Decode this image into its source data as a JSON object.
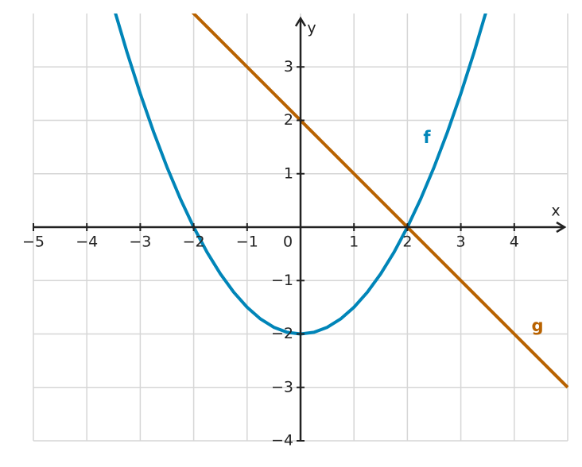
{
  "chart_data": {
    "type": "line",
    "xlabel": "x",
    "ylabel": "y",
    "x": [
      -5,
      -4.75,
      -4.5,
      -4.25,
      -4,
      -3.75,
      -3.5,
      -3.25,
      -3,
      -2.75,
      -2.5,
      -2.25,
      -2,
      -1.75,
      -1.5,
      -1.25,
      -1,
      -0.75,
      -0.5,
      -0.25,
      0,
      0.25,
      0.5,
      0.75,
      1,
      1.25,
      1.5,
      1.75,
      2,
      2.25,
      2.5,
      2.75,
      3,
      3.25,
      3.5,
      3.75,
      4,
      4.25,
      4.5,
      4.75,
      5
    ],
    "series": [
      {
        "name": "f",
        "color": "#0085b8",
        "values": [
          null,
          null,
          null,
          null,
          null,
          null,
          4.125,
          3.28125,
          2.5,
          1.78125,
          1.125,
          0.53125,
          0,
          -0.46875,
          -0.875,
          -1.21875,
          -1.5,
          -1.71875,
          -1.875,
          -1.96875,
          -2,
          -1.96875,
          -1.875,
          -1.71875,
          -1.5,
          -1.21875,
          -0.875,
          -0.46875,
          0,
          0.53125,
          1.125,
          1.78125,
          2.5,
          3.28125,
          4.125,
          null,
          null,
          null,
          null,
          null,
          null
        ]
      },
      {
        "name": "g",
        "color": "#b86200",
        "values": [
          null,
          null,
          null,
          null,
          null,
          null,
          null,
          null,
          null,
          null,
          null,
          4.25,
          4,
          3.75,
          3.5,
          3.25,
          3,
          2.75,
          2.5,
          2.25,
          2,
          1.75,
          1.5,
          1.25,
          1,
          0.75,
          0.5,
          0.25,
          0,
          -0.25,
          -0.5,
          -0.75,
          -1,
          -1.25,
          -1.5,
          -1.75,
          -2,
          -2.25,
          -2.5,
          -2.75,
          -3
        ]
      }
    ],
    "xlim": [
      -5,
      5
    ],
    "ylim": [
      -4,
      4
    ],
    "xticks": [
      {
        "value": -5,
        "label": "−5"
      },
      {
        "value": -4,
        "label": "−4"
      },
      {
        "value": -3,
        "label": "−3"
      },
      {
        "value": -2,
        "label": "−2"
      },
      {
        "value": -1,
        "label": "−1"
      },
      0,
      1,
      2,
      3,
      4
    ],
    "yticks": [
      {
        "value": -4,
        "label": "−4"
      },
      {
        "value": -3,
        "label": "−3"
      },
      {
        "value": -2,
        "label": "−2"
      },
      {
        "value": -1,
        "label": "−1"
      },
      1,
      2,
      3
    ],
    "grid": true
  }
}
